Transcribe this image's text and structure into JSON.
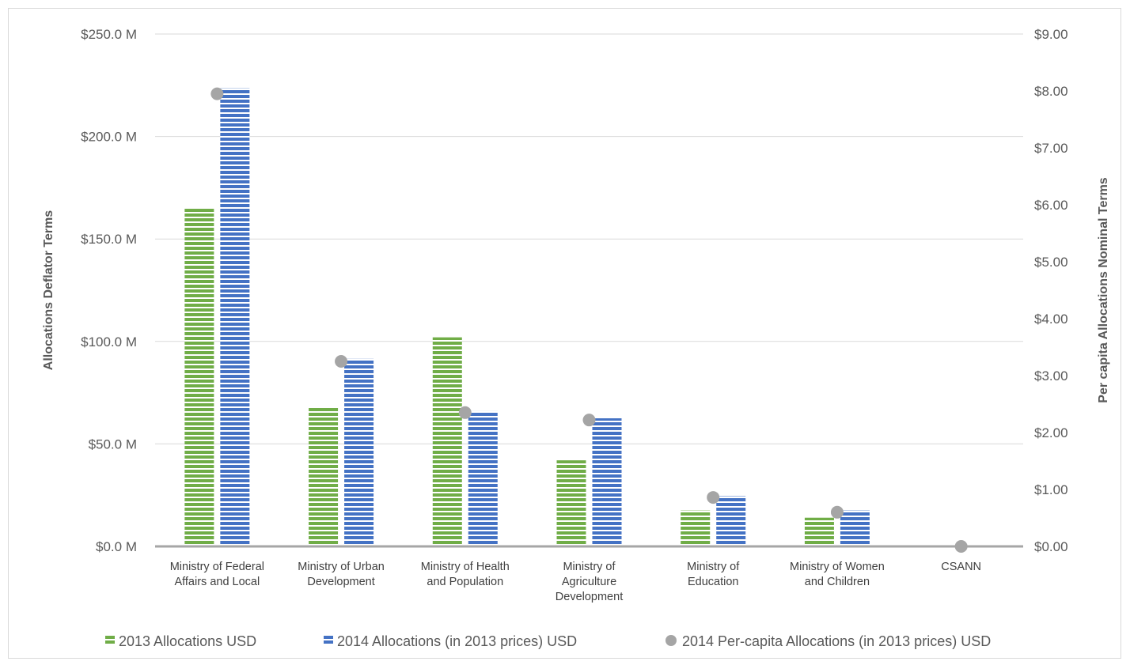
{
  "chart_data": {
    "type": "bar",
    "categories": [
      [
        "Ministry of Federal",
        "Affairs and Local"
      ],
      [
        "Ministry of Urban",
        "Development"
      ],
      [
        "Ministry of Health",
        "and Population"
      ],
      [
        "Ministry of",
        "Agriculture",
        "Development"
      ],
      [
        "Ministry of",
        "Education"
      ],
      [
        "Ministry of Women",
        "and Children"
      ],
      [
        "CSANN"
      ]
    ],
    "series": [
      {
        "name": "2013 Allocations USD",
        "type": "bar",
        "axis": "left",
        "color": "#70ad47",
        "values": [
          165,
          68,
          102,
          42,
          17.5,
          14,
          0
        ]
      },
      {
        "name": "2014 Allocations (in 2013 prices) USD",
        "type": "bar",
        "axis": "left",
        "color": "#4472c4",
        "values": [
          223.5,
          91.5,
          66,
          62.5,
          24.5,
          17.5,
          0
        ]
      },
      {
        "name": "2014 Per-capita Allocations (in 2013 prices) USD",
        "type": "scatter",
        "axis": "right",
        "color": "#a5a5a5",
        "values": [
          7.95,
          3.25,
          2.35,
          2.22,
          0.86,
          0.6,
          0
        ]
      }
    ],
    "y_left": {
      "label": "Allocations Deflator Terms",
      "range": [
        0,
        250
      ],
      "ticks": [
        0,
        50,
        100,
        150,
        200,
        250
      ],
      "tick_labels": [
        "$0.0 M",
        "$50.0 M",
        "$100.0 M",
        "$150.0 M",
        "$200.0 M",
        "$250.0 M"
      ]
    },
    "y_right": {
      "label": "Per capita Allocations Nominal Terms",
      "range": [
        0,
        9
      ],
      "ticks": [
        0,
        1,
        2,
        3,
        4,
        5,
        6,
        7,
        8,
        9
      ],
      "tick_labels": [
        "$0.00",
        "$1.00",
        "$2.00",
        "$3.00",
        "$4.00",
        "$5.00",
        "$6.00",
        "$7.00",
        "$8.00",
        "$9.00"
      ]
    },
    "grid": true,
    "legend_position": "bottom"
  }
}
